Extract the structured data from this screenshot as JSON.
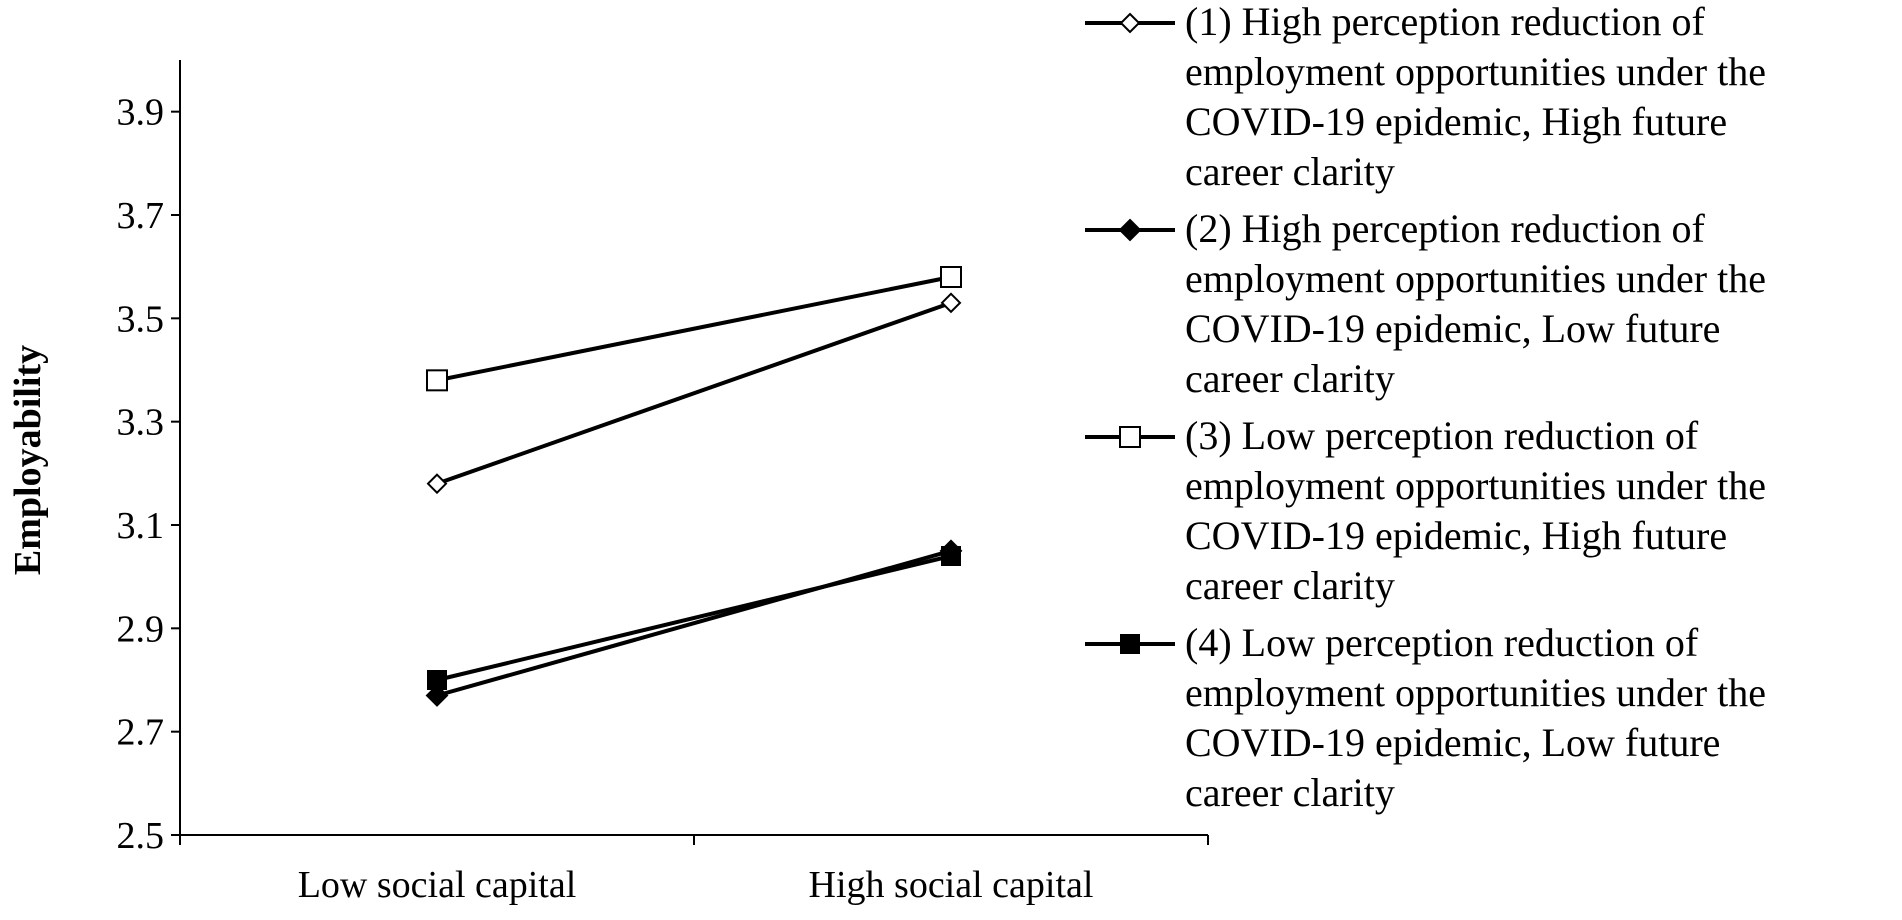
{
  "chart_data": {
    "type": "line",
    "title": "",
    "xlabel": "",
    "ylabel": "Employability",
    "categories": [
      "Low social capital",
      "High social capital"
    ],
    "ylim": [
      2.5,
      4.0
    ],
    "yticks": [
      "2.5",
      "2.7",
      "2.9",
      "3.1",
      "3.3",
      "3.5",
      "3.7",
      "3.9"
    ],
    "grid": false,
    "legend_position": "right",
    "series": [
      {
        "name": "(1) High perception reduction of employment opportunities under the COVID-19 epidemic, High future career clarity",
        "name_lines": [
          "(1) High perception reduction of",
          "employment opportunities under the",
          "COVID-19 epidemic, High future",
          "career clarity"
        ],
        "marker": "diamond-open",
        "values": [
          3.18,
          3.53
        ]
      },
      {
        "name": "(2) High perception reduction of employment opportunities under the COVID-19 epidemic, Low future career clarity",
        "name_lines": [
          "(2) High perception reduction of",
          "employment opportunities under the",
          "COVID-19 epidemic, Low future",
          "career clarity"
        ],
        "marker": "diamond-filled",
        "values": [
          2.77,
          3.05
        ]
      },
      {
        "name": "(3) Low perception reduction of employment opportunities under the COVID-19 epidemic, High future career clarity",
        "name_lines": [
          "(3) Low perception reduction of",
          "employment opportunities under the",
          "COVID-19 epidemic, High future",
          "career clarity"
        ],
        "marker": "square-open",
        "values": [
          3.38,
          3.58
        ]
      },
      {
        "name": "(4) Low perception reduction of employment opportunities under the COVID-19 epidemic, Low future career clarity",
        "name_lines": [
          "(4) Low perception reduction of",
          "employment opportunities under the",
          "COVID-19 epidemic, Low future",
          "career clarity"
        ],
        "marker": "square-filled",
        "values": [
          2.8,
          3.04
        ]
      }
    ],
    "colors": {
      "line": "#000000",
      "marker_fill_open": "#ffffff",
      "marker_fill_filled": "#000000"
    }
  }
}
